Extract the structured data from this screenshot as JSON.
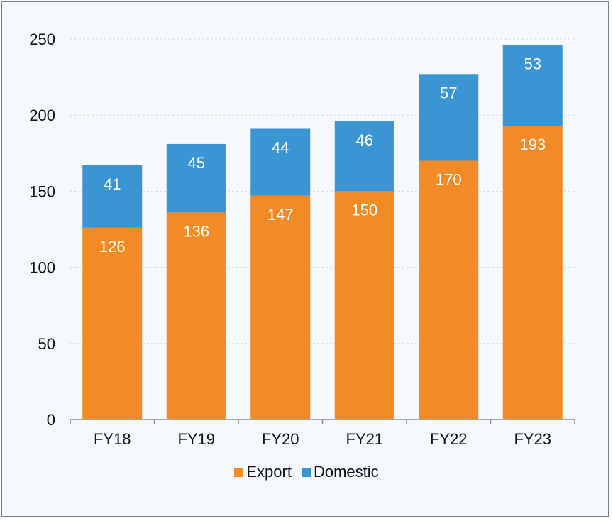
{
  "chart_data": {
    "type": "bar",
    "stacked": true,
    "categories": [
      "FY18",
      "FY19",
      "FY20",
      "FY21",
      "FY22",
      "FY23"
    ],
    "series": [
      {
        "name": "Export",
        "color": "#f28a25",
        "values": [
          126,
          136,
          147,
          150,
          170,
          193
        ]
      },
      {
        "name": "Domestic",
        "color": "#3b95d3",
        "values": [
          41,
          45,
          44,
          46,
          57,
          53
        ]
      }
    ],
    "ylim": [
      0,
      250
    ],
    "yticks": [
      0,
      50,
      100,
      150,
      200,
      250
    ],
    "grid": true,
    "legend_position": "bottom",
    "data_labels": true
  }
}
